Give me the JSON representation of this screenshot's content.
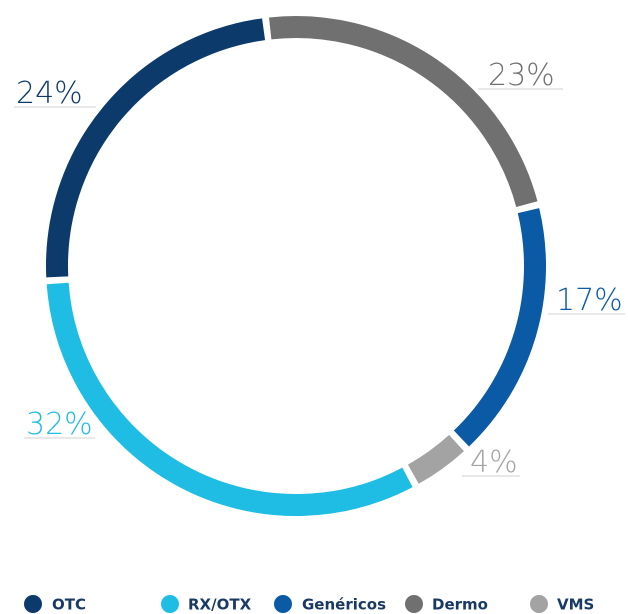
{
  "chart_data": {
    "type": "pie",
    "categories": [
      "Dermo",
      "Genéricos",
      "VMS",
      "RX/OTX",
      "OTC"
    ],
    "values": [
      23,
      17,
      4,
      32,
      24
    ],
    "value_labels": [
      "23%",
      "17%",
      "4%",
      "32%",
      "24%"
    ],
    "colors": [
      "#707070",
      "#0b5aa6",
      "#a3a3a3",
      "#1fbde3",
      "#0c3a6b"
    ],
    "legend_order": [
      4,
      3,
      1,
      0,
      2
    ]
  }
}
